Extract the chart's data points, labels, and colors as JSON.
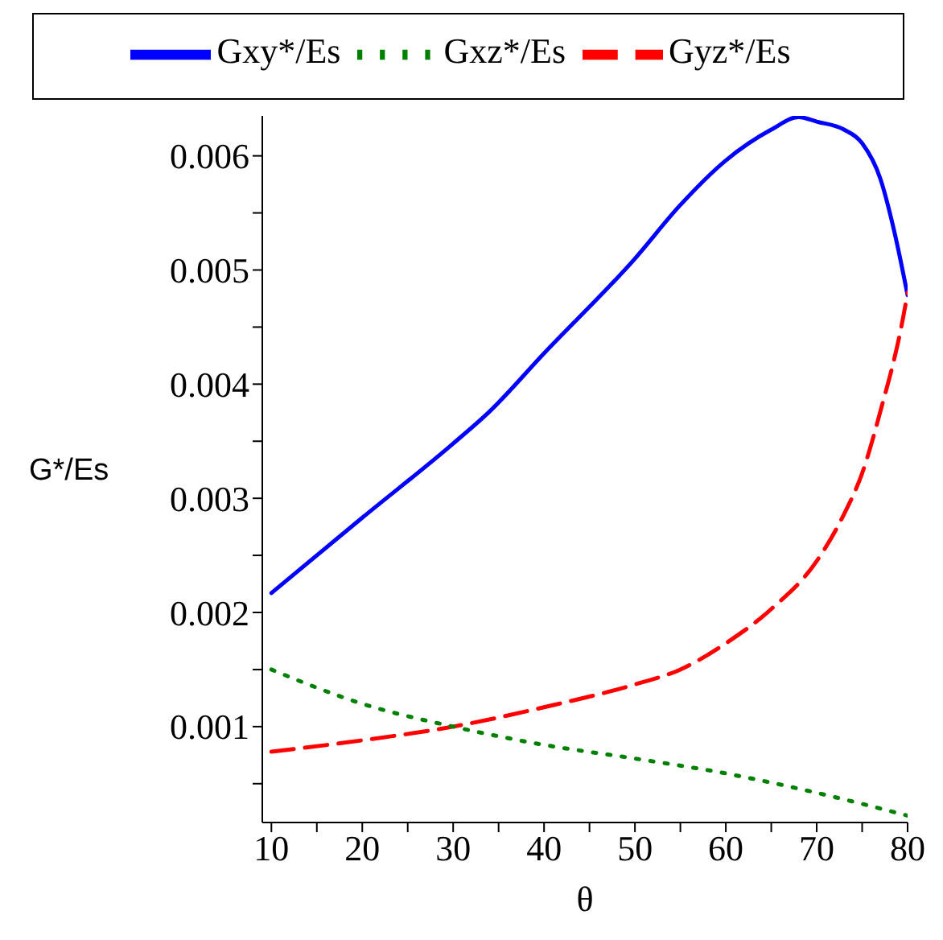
{
  "chart_data": {
    "type": "line",
    "xlabel": "θ",
    "ylabel": "G*/Es",
    "legend": "top",
    "grid": false,
    "marker": "none",
    "xlim": [
      9,
      80
    ],
    "xticks": [
      10,
      {
        "value": 15,
        "label": null
      },
      20,
      {
        "value": 25,
        "label": null
      },
      30,
      {
        "value": 35,
        "label": null
      },
      40,
      {
        "value": 45,
        "label": null
      },
      50,
      {
        "value": 55,
        "label": null
      },
      60,
      {
        "value": 65,
        "label": null
      },
      70,
      {
        "value": 75,
        "label": null
      },
      80
    ],
    "ylim": [
      0.00016,
      0.00635
    ],
    "yticks": [
      {
        "value": 0.0005,
        "label": null
      },
      0.001,
      {
        "value": 0.0015,
        "label": null
      },
      0.002,
      {
        "value": 0.0025,
        "label": null
      },
      0.003,
      {
        "value": 0.0035,
        "label": null
      },
      0.004,
      {
        "value": 0.0045,
        "label": null
      },
      0.005,
      {
        "value": 0.0055,
        "label": null
      },
      0.006
    ],
    "series": [
      {
        "name": "Gxy*/Es",
        "color": "#0000ff",
        "line_style": "solid",
        "x": [
          10,
          20,
          30,
          34,
          40,
          50,
          55,
          60,
          65,
          68,
          70,
          73,
          75,
          77,
          78.5,
          80
        ],
        "values": [
          0.00217,
          0.00283,
          0.00348,
          0.00376,
          0.00427,
          0.0051,
          0.00557,
          0.00596,
          0.00623,
          0.00634,
          0.0063,
          0.00623,
          0.00611,
          0.0058,
          0.00535,
          0.00478
        ]
      },
      {
        "name": "Gyz*/Es",
        "color": "#ff0000",
        "line_style": "dashed",
        "x": [
          10,
          20,
          30,
          40,
          50,
          55,
          60,
          65,
          70,
          73,
          75,
          77,
          79.5,
          80
        ],
        "values": [
          0.00078,
          0.00088,
          0.001,
          0.00117,
          0.00137,
          0.0015,
          0.00173,
          0.00203,
          0.00245,
          0.00286,
          0.00322,
          0.00376,
          0.00458,
          0.0048
        ]
      },
      {
        "name": "Gxz*/Es",
        "color": "#008000",
        "line_style": "dotted",
        "x": [
          10,
          20,
          30,
          40,
          50,
          60,
          70,
          80
        ],
        "values": [
          0.0015,
          0.0012,
          0.001,
          0.00084,
          0.00072,
          0.00059,
          0.00042,
          0.00022
        ]
      }
    ]
  }
}
